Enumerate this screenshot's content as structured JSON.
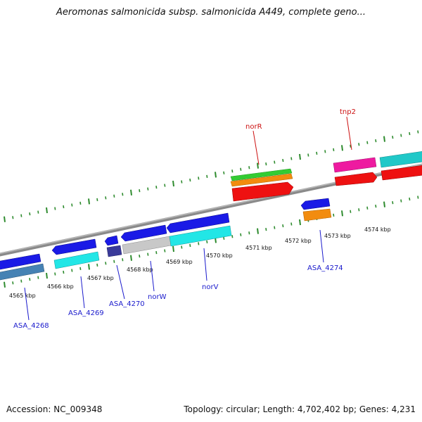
{
  "header": {
    "title": "Aeromonas salmonicida subsp. salmonicida A449, complete geno..."
  },
  "footer": {
    "accession": "Accession: NC_009348",
    "summary": "Topology: circular; Length: 4,702,402 bp; Genes: 4,231"
  },
  "scale": {
    "labels": [
      "4565 kbp",
      "4566 kbp",
      "4567 kbp",
      "4568 kbp",
      "4569 kbp",
      "4570 kbp",
      "4571 kbp",
      "4572 kbp",
      "4573 kbp",
      "4574 kbp"
    ]
  },
  "colors": {
    "backbone": "#8a8a8a",
    "tick_green": "#2e8b2e",
    "label_blue": "#1a1acc",
    "label_red": "#cc1111",
    "blue": "#1a1ae6",
    "cyan": "#22e6e6",
    "steel": "#4682b4",
    "navy": "#3a3a99",
    "gray": "#c8c8c8",
    "green": "#33cc33",
    "orange": "#f28c0f",
    "red": "#ee1111",
    "magenta": "#ee1aa0",
    "teal": "#20c8c8"
  },
  "genes": {
    "upper_labels": [
      "norR",
      "tnp2"
    ],
    "lower_labels": [
      "ASA_4268",
      "ASA_4269",
      "ASA_4270",
      "norW",
      "norV",
      "ASA_4274"
    ]
  }
}
